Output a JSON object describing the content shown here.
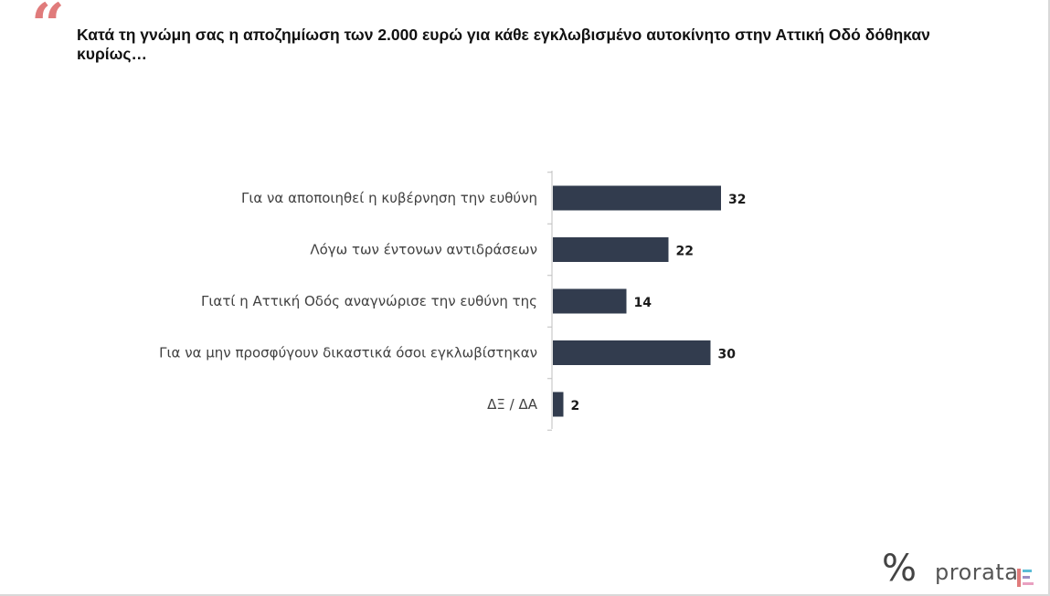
{
  "header": {
    "quote_glyph": "“",
    "title": "Κατά τη γνώμη σας η αποζημίωση των 2.000 ευρώ για κάθε εγκλωβισμένο αυτοκίνητο στην Αττική Οδό δόθηκαν κυρίως…"
  },
  "chart_data": {
    "type": "bar",
    "orientation": "horizontal",
    "categories": [
      "Για να αποποιηθεί η κυβέρνηση την ευθύνη",
      "Λόγω των έντονων αντιδράσεων",
      "Γιατί η Αττική Οδός αναγνώρισε την ευθύνη της",
      "Για να μην προσφύγουν δικαστικά όσοι εγκλωβίστηκαν",
      "ΔΞ / ΔΑ"
    ],
    "values": [
      32,
      22,
      14,
      30,
      2
    ],
    "value_labels": [
      "32",
      "22",
      "14",
      "30",
      "2"
    ],
    "bar_color": "#323c4e",
    "axis_color": "#bfbfbf",
    "xlim": [
      0,
      100
    ],
    "grid": false,
    "legend": "none"
  },
  "brand": {
    "percent_glyph": "%",
    "name": "prorata",
    "colors": [
      "#e07b7b",
      "#5bbcd6",
      "#9b8ec4",
      "#e9a0c0"
    ]
  }
}
